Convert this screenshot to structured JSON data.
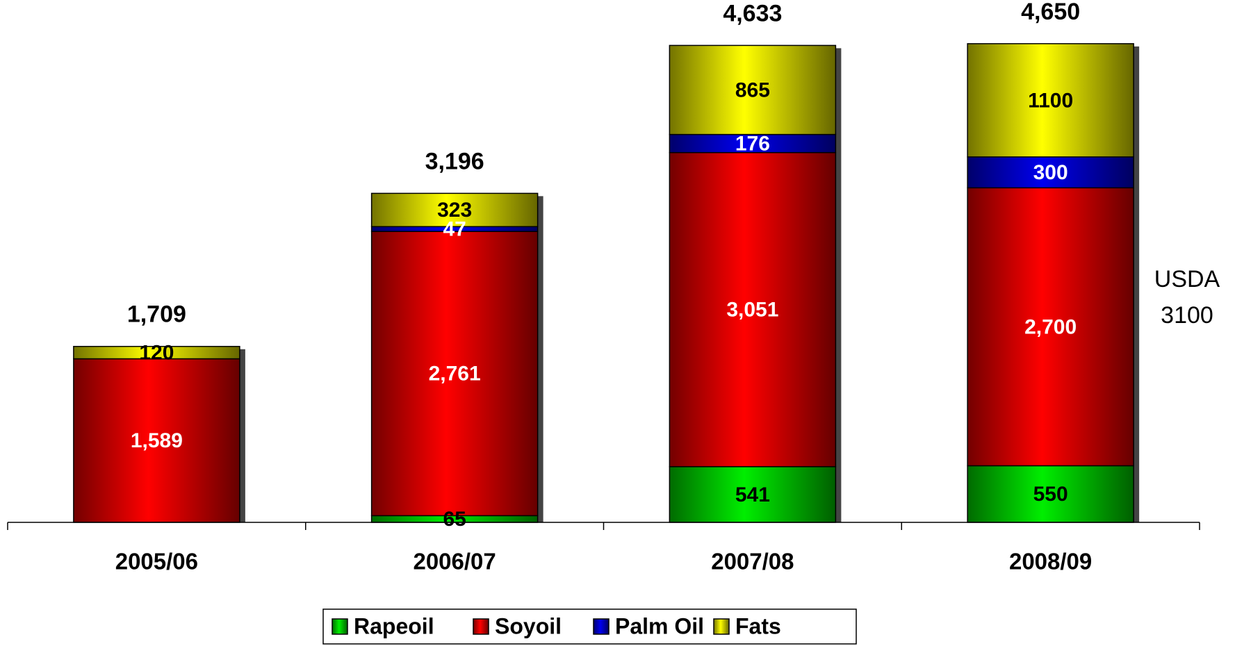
{
  "chart_data": {
    "type": "stacked_bar",
    "categories": [
      "2005/06",
      "2006/07",
      "2007/08",
      "2008/09"
    ],
    "series": [
      {
        "name": "Rapeoil",
        "color": "#00ee00",
        "label_color": "#000000",
        "values": [
          null,
          65,
          541,
          550
        ]
      },
      {
        "name": "Soyoil",
        "color": "#ff0000",
        "label_color": "#ffffff",
        "values": [
          1589,
          2761,
          3051,
          2700
        ],
        "value_labels": [
          "1,589",
          "2,761",
          "3,051",
          "2,700"
        ]
      },
      {
        "name": "Palm Oil",
        "color": "#0000ee",
        "label_color": "#ffffff",
        "values": [
          null,
          47,
          176,
          300
        ]
      },
      {
        "name": "Fats",
        "color": "#ffff00",
        "label_color": "#000000",
        "values": [
          120,
          323,
          865,
          1100
        ]
      }
    ],
    "totals": [
      1709,
      3196,
      4633,
      4650
    ],
    "total_labels": [
      "1,709",
      "3,196",
      "4,633",
      "4,650"
    ],
    "annotation": [
      "USDA",
      "3100"
    ],
    "ylim": [
      0,
      5000
    ]
  }
}
